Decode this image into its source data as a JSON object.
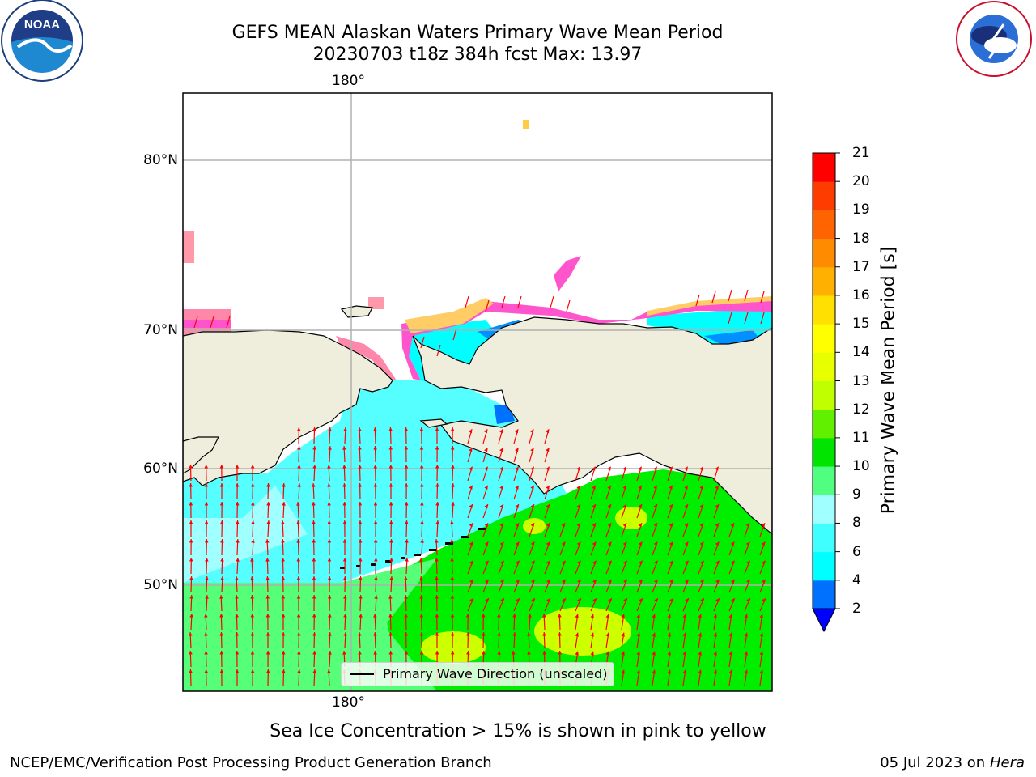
{
  "header": {
    "title_line1": "GEFS MEAN Alaskan Waters Primary Wave Mean Period",
    "title_line2": "20230703 t18z 384h fcst   Max: 13.97"
  },
  "logos": {
    "noaa": {
      "text": "NOAA",
      "ring_text": "NATIONAL OCEANIC AND ATMOSPHERIC ADMINISTRATION · U.S. DEPARTMENT OF COMMERCE"
    },
    "nws": {
      "ring_text": "NATIONAL WEATHER SERVICE"
    }
  },
  "map": {
    "lon_label_top": "180°",
    "lon_label_bottom": "180°",
    "lat_labels": [
      "80°N",
      "70°N",
      "60°N",
      "50°N"
    ],
    "legend_label": "Primary Wave Direction (unscaled)",
    "colors": {
      "land": "#efeedc",
      "ocean_low": "#00ffff",
      "ocean_mid": "#55ff77",
      "ocean_green": "#00ee00",
      "ocean_yellow": "#ccff00",
      "ice_pink": "#ff55cc",
      "arrow": "#ff0000"
    }
  },
  "colorbar": {
    "label": "Primary Wave Mean Period [s]",
    "ticks": [
      "2",
      "4",
      "6",
      "8",
      "9",
      "10",
      "11",
      "12",
      "13",
      "14",
      "15",
      "16",
      "17",
      "18",
      "19",
      "20",
      "21"
    ],
    "colors": [
      "#0070ff",
      "#00ffff",
      "#40ffff",
      "#a0ffff",
      "#50ff80",
      "#00e400",
      "#60f000",
      "#c0ff00",
      "#e8ff00",
      "#ffff00",
      "#ffe000",
      "#ffb000",
      "#ff8c00",
      "#ff6400",
      "#ff3c00",
      "#ff0000"
    ],
    "extend_color": "#0000ff"
  },
  "footer": {
    "ice_note": "Sea Ice Concentration > 15% is shown in pink to yellow",
    "left": "NCEP/EMC/Verification Post Processing Product Generation Branch",
    "date": "05 Jul 2023 on ",
    "machine": "Hera"
  }
}
